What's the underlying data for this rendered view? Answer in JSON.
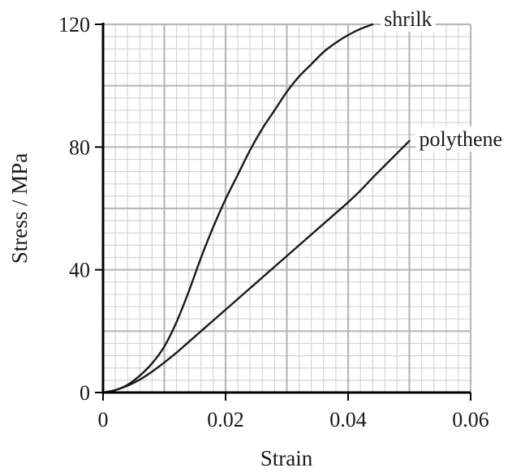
{
  "chart_data": {
    "type": "line",
    "title": "",
    "xlabel": "Strain",
    "ylabel": "Stress / MPa",
    "xlim": [
      0,
      0.06
    ],
    "ylim": [
      0,
      120
    ],
    "x_ticks": [
      0,
      0.02,
      0.04,
      0.06
    ],
    "x_tick_labels": [
      "0",
      "0.02",
      "0.04",
      "0.06"
    ],
    "y_ticks": [
      0,
      40,
      80,
      120
    ],
    "y_tick_labels": [
      "0",
      "40",
      "80",
      "120"
    ],
    "grid": true,
    "legend": "none (series labelled directly at line ends)",
    "series": [
      {
        "name": "shrilk",
        "x": [
          0,
          0.002,
          0.004,
          0.006,
          0.008,
          0.01,
          0.012,
          0.014,
          0.016,
          0.018,
          0.02,
          0.022,
          0.024,
          0.026,
          0.028,
          0.03,
          0.032,
          0.034,
          0.036,
          0.038,
          0.04,
          0.042,
          0.044
        ],
        "y": [
          0,
          0.8,
          2.5,
          5.5,
          9.5,
          15,
          23,
          33,
          44,
          54,
          63,
          71,
          79,
          86,
          92,
          98,
          103,
          107,
          111,
          114,
          116.5,
          118.5,
          120
        ]
      },
      {
        "name": "polythene",
        "x": [
          0,
          0.002,
          0.004,
          0.006,
          0.008,
          0.01,
          0.012,
          0.014,
          0.016,
          0.018,
          0.02,
          0.022,
          0.024,
          0.026,
          0.028,
          0.03,
          0.032,
          0.034,
          0.036,
          0.038,
          0.04,
          0.042,
          0.044,
          0.046,
          0.048,
          0.05
        ],
        "y": [
          0,
          0.8,
          2.2,
          4.2,
          6.8,
          9.8,
          13,
          16.5,
          20,
          23.5,
          27,
          30.5,
          34,
          37.5,
          41,
          44.5,
          48,
          51.5,
          55,
          58.5,
          62,
          65.8,
          70,
          74,
          78,
          82
        ]
      }
    ],
    "colors": {
      "line": "#1a1a1a",
      "axis": "#000000",
      "grid_major": "#b8b8b8",
      "grid_minor": "#d4d4d4",
      "background": "#ffffff"
    }
  }
}
